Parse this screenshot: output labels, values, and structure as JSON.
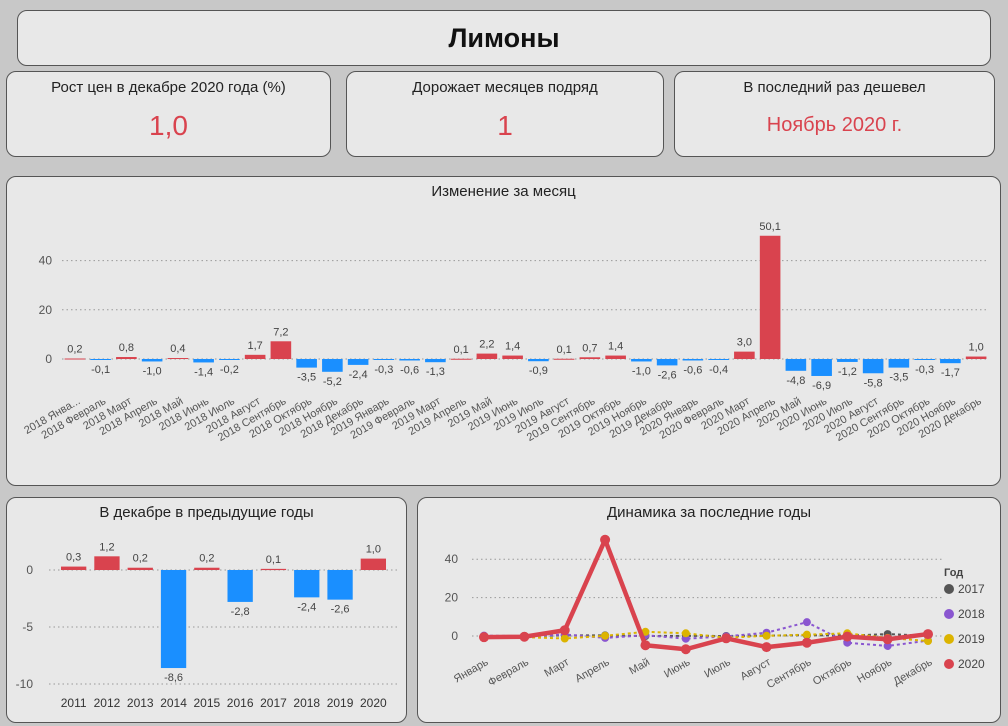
{
  "title": "Лимоны",
  "kpis": [
    {
      "label": "Рост цен в декабре 2020 года (%)",
      "value": "1,0"
    },
    {
      "label": "Дорожает месяцев подряд",
      "value": "1"
    },
    {
      "label": "В последний раз дешевел",
      "value": "Ноябрь 2020 г."
    }
  ],
  "colors": {
    "positive": "#d9434e",
    "negative": "#1a8fff",
    "y2017": "#555555",
    "y2018": "#8a56d0",
    "y2019": "#dcb400",
    "y2020": "#d9434e"
  },
  "chart_data": [
    {
      "type": "bar",
      "title": "Изменение за месяц",
      "categories": [
        "2018 Янва...",
        "2018 Февраль",
        "2018 Март",
        "2018 Апрель",
        "2018 Май",
        "2018 Июнь",
        "2018 Июль",
        "2018 Август",
        "2018 Сентябрь",
        "2018 Октябрь",
        "2018 Ноябрь",
        "2018 Декабрь",
        "2019 Январь",
        "2019 Февраль",
        "2019 Март",
        "2019 Апрель",
        "2019 Май",
        "2019 Июнь",
        "2019 Июль",
        "2019 Август",
        "2019 Сентябрь",
        "2019 Октябрь",
        "2019 Ноябрь",
        "2019 Декабрь",
        "2020 Январь",
        "2020 Февраль",
        "2020 Март",
        "2020 Апрель",
        "2020 Май",
        "2020 Июнь",
        "2020 Июль",
        "2020 Август",
        "2020 Сентябрь",
        "2020 Октябрь",
        "2020 Ноябрь",
        "2020 Декабрь"
      ],
      "values": [
        0.2,
        -0.1,
        0.8,
        -1.0,
        0.4,
        -1.4,
        -0.2,
        1.7,
        7.2,
        -3.5,
        -5.2,
        -2.4,
        -0.3,
        -0.6,
        -1.3,
        0.1,
        2.2,
        1.4,
        -0.9,
        0.1,
        0.7,
        1.4,
        -1.0,
        -2.6,
        -0.6,
        -0.4,
        3.0,
        50.1,
        -4.8,
        -6.9,
        -1.2,
        -5.8,
        -3.5,
        -0.3,
        -1.7,
        1.0
      ],
      "labels": [
        "0,2",
        "-0,1",
        "0,8",
        "-1,0",
        "0,4",
        "-1,4",
        "-0,2",
        "1,7",
        "7,2",
        "-3,5",
        "-5,2",
        "-2,4",
        "-0,3",
        "-0,6",
        "-1,3",
        "0,1",
        "2,2",
        "1,4",
        "-0,9",
        "0,1",
        "0,7",
        "1,4",
        "-1,0",
        "-2,6",
        "-0,6",
        "-0,4",
        "3,0",
        "50,1",
        "-4,8",
        "-6,9",
        "-1,2",
        "-5,8",
        "-3,5",
        "-0,3",
        "-1,7",
        "1,0"
      ],
      "yticks": [
        0,
        20,
        40
      ],
      "ylim": [
        -8,
        55
      ]
    },
    {
      "type": "bar",
      "title": "В декабре в предыдущие годы",
      "categories": [
        "2011",
        "2012",
        "2013",
        "2014",
        "2015",
        "2016",
        "2017",
        "2018",
        "2019",
        "2020"
      ],
      "values": [
        0.3,
        1.2,
        0.2,
        -8.6,
        0.2,
        -2.8,
        0.1,
        -2.4,
        -2.6,
        1.0
      ],
      "labels": [
        "0,3",
        "1,2",
        "0,2",
        "-8,6",
        "0,2",
        "-2,8",
        "0,1",
        "-2,4",
        "-2,6",
        "1,0"
      ],
      "yticks": [
        0,
        -5,
        -10
      ],
      "ylim": [
        -11,
        2.5
      ]
    },
    {
      "type": "line",
      "title": "Динамика за последние годы",
      "categories": [
        "Январь",
        "Февраль",
        "Март",
        "Апрель",
        "Май",
        "Июнь",
        "Июль",
        "Август",
        "Сентябрь",
        "Октябрь",
        "Ноябрь",
        "Декабрь"
      ],
      "legend_title": "Год",
      "legend_position": "right",
      "yticks": [
        0,
        20,
        40
      ],
      "ylim": [
        -8,
        52
      ],
      "series": [
        {
          "name": "2017",
          "values": [
            0.0,
            0.0,
            0.3,
            0.3,
            0.0,
            0.1,
            0.0,
            0.2,
            0.4,
            0.2,
            1.0,
            0.1
          ]
        },
        {
          "name": "2018",
          "values": [
            0.2,
            -0.1,
            0.8,
            -1.0,
            0.4,
            -1.4,
            -0.2,
            1.7,
            7.2,
            -3.5,
            -5.2,
            -2.4
          ]
        },
        {
          "name": "2019",
          "values": [
            -0.3,
            -0.6,
            -1.3,
            0.1,
            2.2,
            1.4,
            -0.9,
            0.1,
            0.7,
            1.4,
            -1.0,
            -2.6
          ]
        },
        {
          "name": "2020",
          "values": [
            -0.6,
            -0.4,
            3.0,
            50.1,
            -4.8,
            -6.9,
            -1.2,
            -5.8,
            -3.5,
            -0.3,
            -1.7,
            1.0
          ]
        }
      ]
    }
  ]
}
